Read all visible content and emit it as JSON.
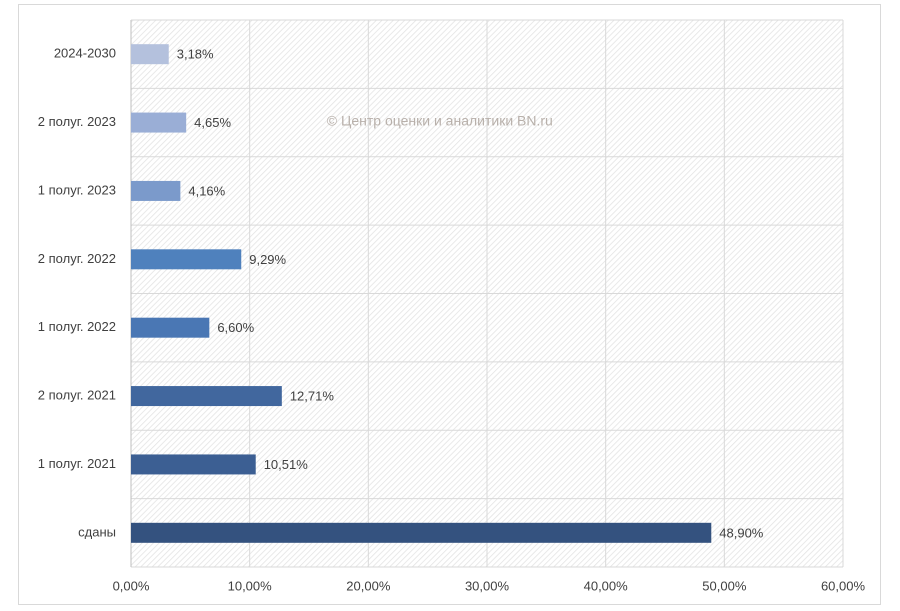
{
  "chart_data": {
    "type": "bar",
    "orientation": "horizontal",
    "categories": [
      "2024-2030",
      "2 полуг. 2023",
      "1 полуг. 2023",
      "2 полуг. 2022",
      "1 полуг. 2022",
      "2 полуг. 2021",
      "1 полуг. 2021",
      "сданы"
    ],
    "values": [
      3.18,
      4.65,
      4.16,
      9.29,
      6.6,
      12.71,
      10.51,
      48.9
    ],
    "data_labels": [
      "3,18%",
      "4,65%",
      "4,16%",
      "9,29%",
      "6,60%",
      "12,71%",
      "10,51%",
      "48,90%"
    ],
    "bar_colors": [
      "#b4c1dd",
      "#9aaed6",
      "#7b9acb",
      "#4f81bd",
      "#4a77b4",
      "#41679e",
      "#3c5f93",
      "#34527f"
    ],
    "xlim": [
      0,
      60
    ],
    "xticks": [
      0,
      10,
      20,
      30,
      40,
      50,
      60
    ],
    "xtick_labels": [
      "0,00%",
      "10,00%",
      "20,00%",
      "30,00%",
      "40,00%",
      "50,00%",
      "60,00%"
    ],
    "grid": true,
    "plot_background": "hatched-light-gray",
    "watermark": "© Центр оценки и аналитики BN.ru",
    "title": "",
    "xlabel": "",
    "ylabel": ""
  }
}
